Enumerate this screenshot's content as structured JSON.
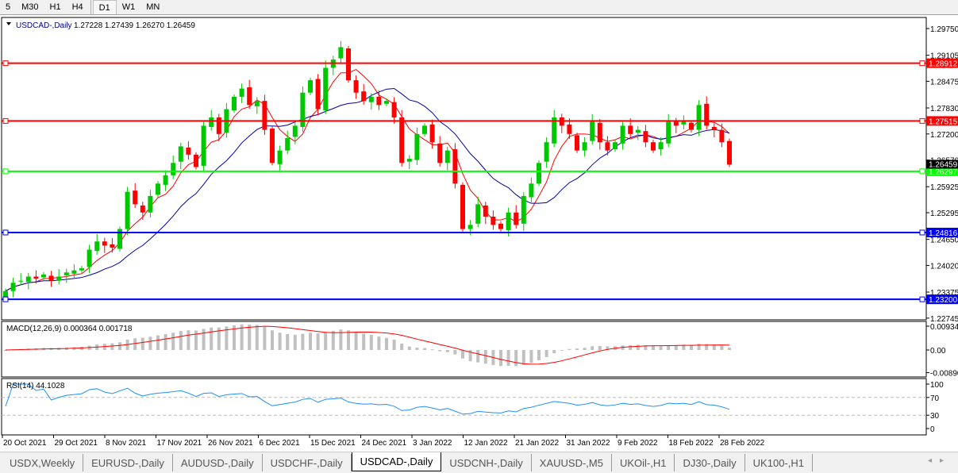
{
  "toolbar": {
    "timeframes": [
      "5",
      "M30",
      "H1",
      "H4",
      "D1",
      "W1",
      "MN"
    ],
    "active": "D1"
  },
  "chart": {
    "symbol_label": "USDCAD-,Daily",
    "ohlc": "1.27228 1.27439 1.26270 1.26459",
    "price_ticks": [
      "1.29750",
      "1.29105",
      "1.28475",
      "1.27830",
      "1.27200",
      "1.26570",
      "1.25925",
      "1.25295",
      "1.24650",
      "1.24020",
      "1.23375",
      "1.22745"
    ],
    "current_price": "1.26459",
    "levels": [
      {
        "value": "1.28912",
        "color": "#ff0000"
      },
      {
        "value": "1.27515",
        "color": "#ff0000"
      },
      {
        "value": "1.26297",
        "color": "#00ff00"
      },
      {
        "value": "1.24816",
        "color": "#0000ff"
      },
      {
        "value": "1.23200",
        "color": "#0000ff"
      }
    ],
    "colors": {
      "bull": "#00c800",
      "bear": "#ff0000",
      "ma_fast": "#ff0000",
      "ma_slow": "#0000aa",
      "macd_hist": "#c0c0c0",
      "macd_signal": "#ff0000",
      "rsi": "#1e90ff"
    },
    "date_labels": [
      "20 Oct 2021",
      "29 Oct 2021",
      "8 Nov 2021",
      "17 Nov 2021",
      "26 Nov 2021",
      "6 Dec 2021",
      "15 Dec 2021",
      "24 Dec 2021",
      "3 Jan 2022",
      "12 Jan 2022",
      "21 Jan 2022",
      "31 Jan 2022",
      "9 Feb 2022",
      "18 Feb 2022",
      "28 Feb 2022"
    ]
  },
  "macd": {
    "label": "MACD(12,26,9) 0.000364 0.001718",
    "ticks": [
      "0.009345",
      "0.00",
      "-0.008902"
    ]
  },
  "rsi": {
    "label": "RSI(14) 44.1028",
    "ticks": [
      "100",
      "70",
      "30",
      "0"
    ]
  },
  "chart_data": {
    "type": "candlestick",
    "closes": [
      1.234,
      1.236,
      1.2365,
      1.2375,
      1.237,
      1.238,
      1.2365,
      1.2375,
      1.2385,
      1.239,
      1.2395,
      1.244,
      1.246,
      1.245,
      1.2445,
      1.249,
      1.258,
      1.255,
      1.253,
      1.257,
      1.26,
      1.262,
      1.265,
      1.269,
      1.267,
      1.264,
      1.274,
      1.276,
      1.272,
      1.278,
      1.281,
      1.283,
      1.279,
      1.28,
      1.273,
      1.265,
      1.268,
      1.271,
      1.274,
      1.282,
      1.285,
      1.278,
      1.288,
      1.29,
      1.293,
      1.285,
      1.282,
      1.28,
      1.281,
      1.279,
      1.28,
      1.276,
      1.265,
      1.266,
      1.272,
      1.274,
      1.27,
      1.265,
      1.268,
      1.26,
      1.249,
      1.25,
      1.255,
      1.252,
      1.25,
      1.249,
      1.253,
      1.25,
      1.257,
      1.26,
      1.265,
      1.27,
      1.276,
      1.274,
      1.272,
      1.268,
      1.27,
      1.275,
      1.27,
      1.268,
      1.27,
      1.274,
      1.272,
      1.273,
      1.27,
      1.268,
      1.27,
      1.275,
      1.274,
      1.275,
      1.273,
      1.279,
      1.274,
      1.273,
      1.27,
      1.2646
    ]
  },
  "tabs": [
    "USDX,Weekly",
    "EURUSD-,Daily",
    "AUDUSD-,Daily",
    "USDCHF-,Daily",
    "USDCAD-,Daily",
    "USDCNH-,Daily",
    "XAUUSD-,M5",
    "UKOil-,H1",
    "DJ30-,Daily",
    "UK100-,H1"
  ],
  "active_tab": "USDCAD-,Daily"
}
